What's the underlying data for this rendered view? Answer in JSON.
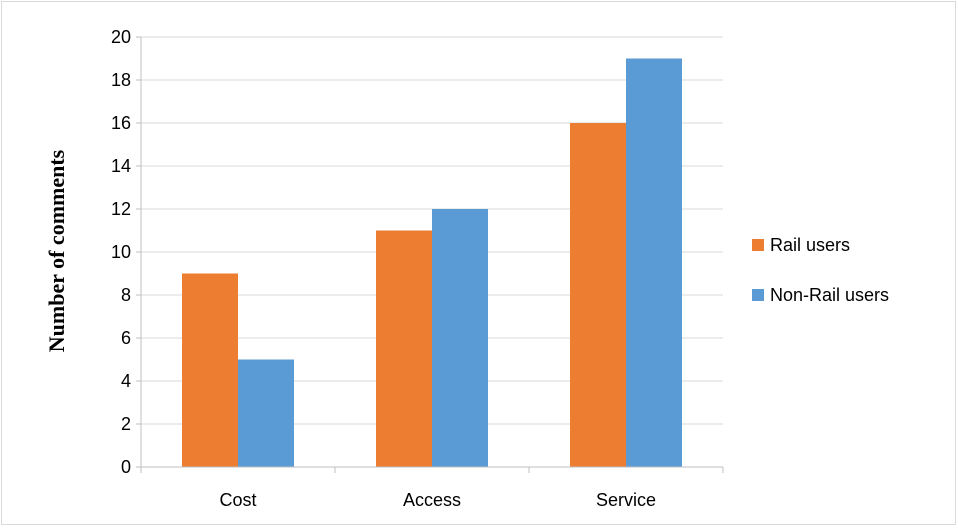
{
  "chart_data": {
    "type": "bar",
    "categories": [
      "Cost",
      "Access",
      "Service"
    ],
    "series": [
      {
        "name": "Rail users",
        "values": [
          9,
          11,
          16
        ],
        "color": "#ED7D31"
      },
      {
        "name": "Non-Rail users",
        "values": [
          5,
          12,
          19
        ],
        "color": "#5B9BD5"
      }
    ],
    "title": "",
    "xlabel": "",
    "ylabel": "Number of comments",
    "ylim": [
      0,
      20
    ],
    "yticks": [
      0,
      2,
      4,
      6,
      8,
      10,
      12,
      14,
      16,
      18,
      20
    ],
    "grid": true,
    "legend_position": "right"
  }
}
